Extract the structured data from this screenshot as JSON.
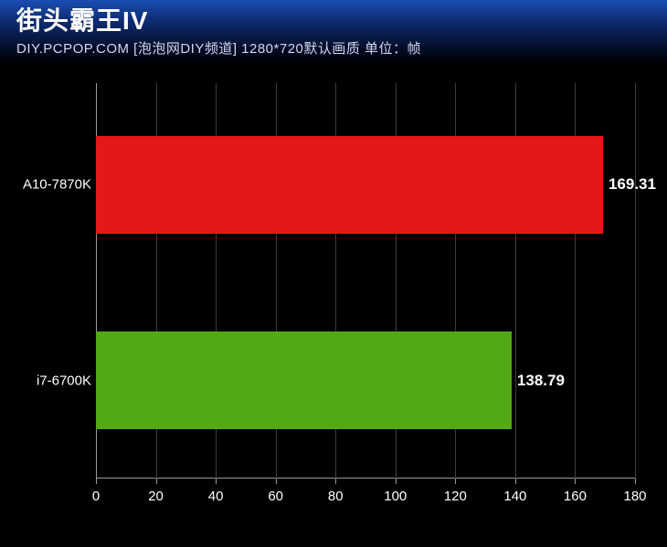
{
  "header": {
    "title": "街头霸王IV",
    "subtitle": "DIY.PCPOP.COM [泡泡网DIY频道] 1280*720默认画质 单位：帧"
  },
  "chart": {
    "type": "bar-horizontal",
    "background_color": "#000000",
    "grid_color": "#3d3d3d",
    "axis_color": "#9a9a9a",
    "label_color": "#ffffff",
    "label_fontsize": 15,
    "value_fontsize": 17,
    "xlim": [
      0,
      180
    ],
    "xtick_step": 20,
    "xticks": [
      0,
      20,
      40,
      60,
      80,
      100,
      120,
      140,
      160,
      180
    ],
    "bar_height_ratio": 0.5,
    "series": [
      {
        "label": "A10-7870K",
        "value": 169.31,
        "value_text": "169.31",
        "color": "#e41818",
        "center_pct": 25
      },
      {
        "label": "i7-6700K",
        "value": 138.79,
        "value_text": "138.79",
        "color": "#53a815",
        "center_pct": 75
      }
    ]
  }
}
